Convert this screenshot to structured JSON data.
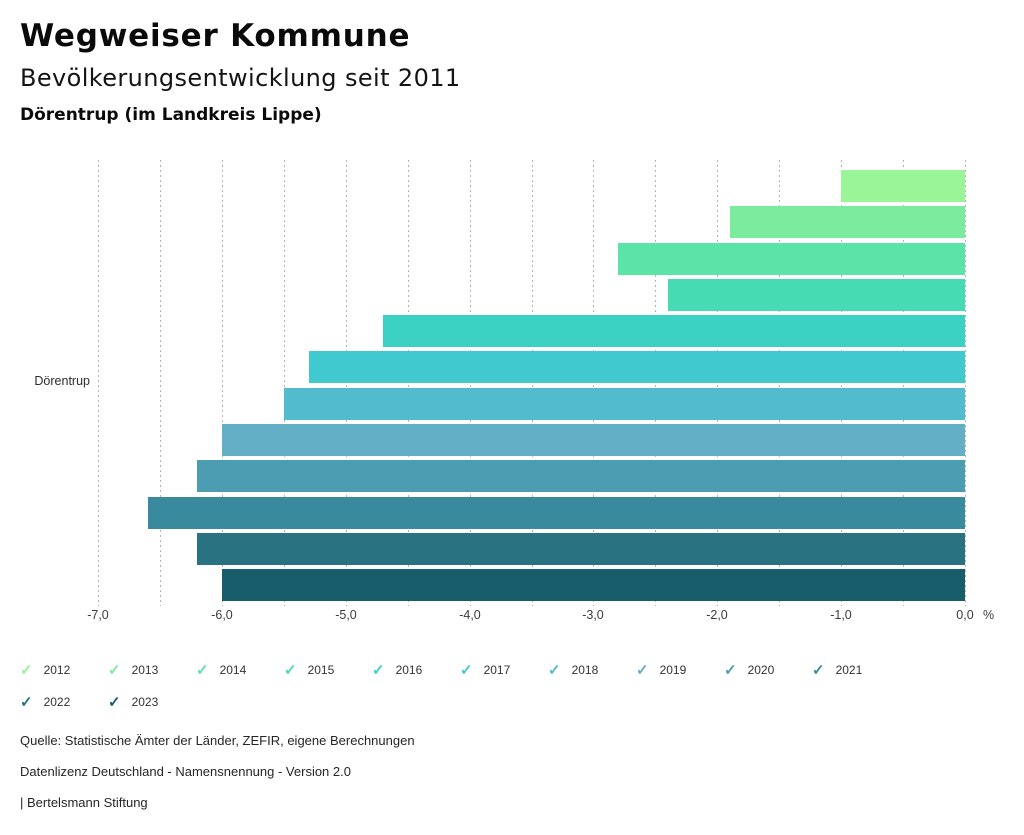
{
  "header": {
    "title": "Wegweiser Kommune",
    "subtitle": "Bevölkerungsentwicklung seit 2011",
    "region": "Dörentrup (im Landkreis Lippe)"
  },
  "chart_data": {
    "type": "bar",
    "orientation": "horizontal",
    "title": "Bevölkerungsentwicklung seit 2011",
    "category_label": "Dörentrup",
    "unit": "%",
    "xlim": [
      -7.0,
      0.0
    ],
    "x_tick_labels": [
      "-7,0",
      "-6,0",
      "-5,0",
      "-4,0",
      "-3,0",
      "-2,0",
      "-1,0",
      "0,0"
    ],
    "gridlines": "dotted vertical every 0.5",
    "legend_position": "bottom",
    "series": [
      {
        "year": "2012",
        "value": -1.0,
        "color": "#99F595"
      },
      {
        "year": "2013",
        "value": -1.9,
        "color": "#7BEC9E"
      },
      {
        "year": "2014",
        "value": -2.8,
        "color": "#5CE4A8"
      },
      {
        "year": "2015",
        "value": -2.4,
        "color": "#46DBB3"
      },
      {
        "year": "2016",
        "value": -4.7,
        "color": "#3BD2C3"
      },
      {
        "year": "2017",
        "value": -5.3,
        "color": "#40C9CE"
      },
      {
        "year": "2018",
        "value": -5.5,
        "color": "#52BBCD"
      },
      {
        "year": "2019",
        "value": -6.0,
        "color": "#63AFC6"
      },
      {
        "year": "2020",
        "value": -6.2,
        "color": "#4C9DB1"
      },
      {
        "year": "2021",
        "value": -6.6,
        "color": "#3A8A9E"
      },
      {
        "year": "2022",
        "value": -6.2,
        "color": "#287281"
      },
      {
        "year": "2023",
        "value": -6.0,
        "color": "#175D6B"
      }
    ]
  },
  "legend": {
    "checkmark": "✓"
  },
  "footer": {
    "source": "Quelle: Statistische Ämter der Länder, ZEFIR, eigene Berechnungen",
    "license": "Datenlizenz Deutschland - Namensnennung - Version 2.0",
    "attribution": "| Bertelsmann Stiftung"
  }
}
